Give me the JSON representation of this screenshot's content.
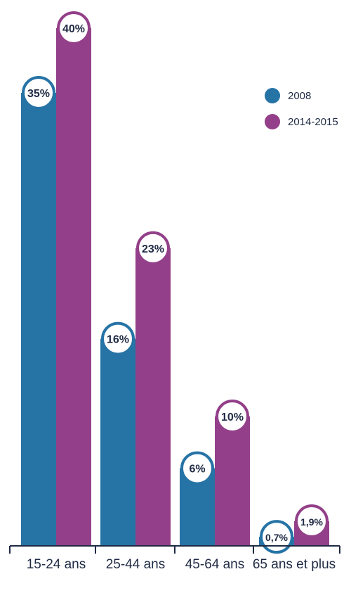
{
  "chart_data": {
    "type": "bar",
    "title": "",
    "xlabel": "",
    "ylabel": "",
    "ylim": [
      0,
      40
    ],
    "grid": false,
    "legend_position": "top-right",
    "categories": [
      "15-24 ans",
      "25-44 ans",
      "45-64 ans",
      "65 ans et plus"
    ],
    "series": [
      {
        "name": "2008",
        "color": "#2673a6",
        "values": [
          35,
          16,
          6,
          0.7
        ],
        "labels": [
          "35%",
          "16%",
          "6%",
          "0,7%"
        ]
      },
      {
        "name": "2014-2015",
        "color": "#933f89",
        "values": [
          40,
          23,
          10,
          1.9
        ],
        "labels": [
          "40%",
          "23%",
          "10%",
          "1,9%"
        ]
      }
    ],
    "axis_color": "#1f2a44"
  }
}
